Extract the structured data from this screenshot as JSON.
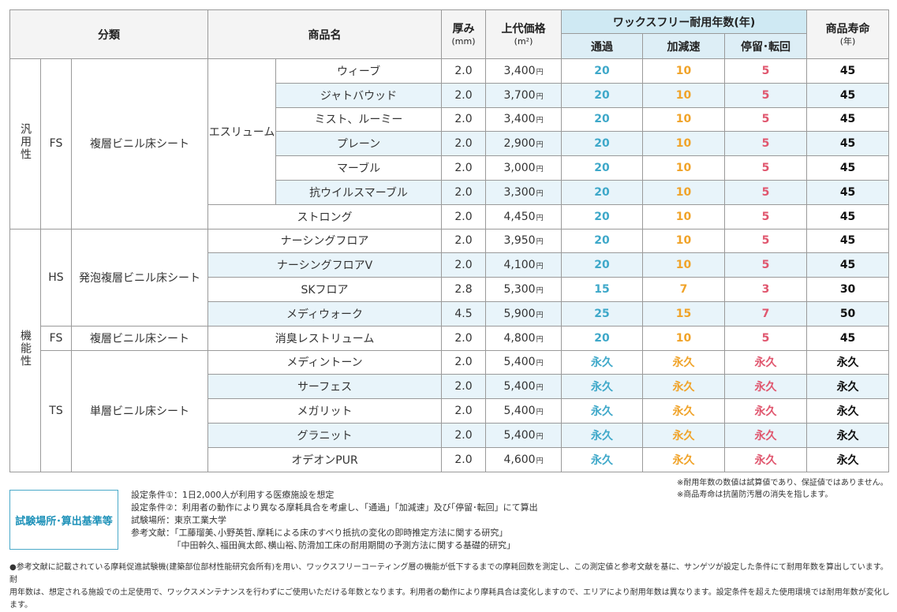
{
  "header": {
    "category": "分類",
    "product_name": "商品名",
    "thickness": "厚み",
    "thickness_unit": "(mm)",
    "price": "上代価格",
    "price_unit": "(m²)",
    "wax_free": "ワックスフリー耐用年数(年)",
    "wax_sub": [
      "通過",
      "加減速",
      "停留･転回"
    ],
    "life": "商品寿命",
    "life_unit": "(年)"
  },
  "groups": {
    "general": "汎用性",
    "functional": "機能性",
    "fs": "FS",
    "hs": "HS",
    "ts": "TS",
    "fs_type": "複層ビニル床シート",
    "hs_type": "発泡複層ビニル床シート",
    "fs2_type": "複層ビニル床シート",
    "ts_type": "単層ビニル床シート",
    "esurium": "エスリューム"
  },
  "rows": [
    {
      "name": "ウィーブ",
      "thick": "2.0",
      "price": "3,400",
      "pass": "20",
      "accel": "10",
      "stop": "5",
      "life": "45"
    },
    {
      "name": "ジャトバウッド",
      "thick": "2.0",
      "price": "3,700",
      "pass": "20",
      "accel": "10",
      "stop": "5",
      "life": "45"
    },
    {
      "name": "ミスト、ルーミー",
      "thick": "2.0",
      "price": "3,400",
      "pass": "20",
      "accel": "10",
      "stop": "5",
      "life": "45"
    },
    {
      "name": "プレーン",
      "thick": "2.0",
      "price": "2,900",
      "pass": "20",
      "accel": "10",
      "stop": "5",
      "life": "45"
    },
    {
      "name": "マーブル",
      "thick": "2.0",
      "price": "3,000",
      "pass": "20",
      "accel": "10",
      "stop": "5",
      "life": "45"
    },
    {
      "name": "抗ウイルスマーブル",
      "thick": "2.0",
      "price": "3,300",
      "pass": "20",
      "accel": "10",
      "stop": "5",
      "life": "45"
    },
    {
      "name": "ストロング",
      "thick": "2.0",
      "price": "4,450",
      "pass": "20",
      "accel": "10",
      "stop": "5",
      "life": "45"
    },
    {
      "name": "ナーシングフロア",
      "thick": "2.0",
      "price": "3,950",
      "pass": "20",
      "accel": "10",
      "stop": "5",
      "life": "45"
    },
    {
      "name": "ナーシングフロアV",
      "thick": "2.0",
      "price": "4,100",
      "pass": "20",
      "accel": "10",
      "stop": "5",
      "life": "45"
    },
    {
      "name": "SKフロア",
      "thick": "2.8",
      "price": "5,300",
      "pass": "15",
      "accel": "7",
      "stop": "3",
      "life": "30"
    },
    {
      "name": "メディウォーク",
      "thick": "4.5",
      "price": "5,900",
      "pass": "25",
      "accel": "15",
      "stop": "7",
      "life": "50"
    },
    {
      "name": "消臭レストリューム",
      "thick": "2.0",
      "price": "4,800",
      "pass": "20",
      "accel": "10",
      "stop": "5",
      "life": "45"
    },
    {
      "name": "メディントーン",
      "thick": "2.0",
      "price": "5,400",
      "pass": "永久",
      "accel": "永久",
      "stop": "永久",
      "life": "永久"
    },
    {
      "name": "サーフェス",
      "thick": "2.0",
      "price": "5,400",
      "pass": "永久",
      "accel": "永久",
      "stop": "永久",
      "life": "永久"
    },
    {
      "name": "メガリット",
      "thick": "2.0",
      "price": "5,400",
      "pass": "永久",
      "accel": "永久",
      "stop": "永久",
      "life": "永久"
    },
    {
      "name": "グラニット",
      "thick": "2.0",
      "price": "5,400",
      "pass": "永久",
      "accel": "永久",
      "stop": "永久",
      "life": "永久"
    },
    {
      "name": "オデオンPUR",
      "thick": "2.0",
      "price": "4,600",
      "pass": "永久",
      "accel": "永久",
      "stop": "永久",
      "life": "永久"
    }
  ],
  "yen": "円",
  "notes": {
    "box": "試験場所･算出基準等",
    "cond1": "設定条件①：1日2,000人が利用する医療施設を想定",
    "cond2": "設定条件②：利用者の動作により異なる摩耗具合を考慮し､「通過」｢加減速」及び｢停留･転回」にて算出",
    "place": "試験場所：東京工業大学",
    "ref1": "参考文献：｢工藤瑠美､小野英哲､摩耗による床のすべり抵抗の変化の即時推定方法に関する研究」",
    "ref2": "｢中田幹久､福田眞太郎､横山裕､防滑加工床の耐用期間の予測方法に関する基礎的研究」",
    "right1": "※耐用年数の数値は試算値であり、保証値ではありません。",
    "right2": "※商品寿命は抗菌防汚層の消失を指します。",
    "footer1": "●参考文献に記載されている摩耗促進試験機(建築部位部材性能研究会所有)を用い、ワックスフリーコーティング層の機能が低下するまでの摩耗回数を測定し、この測定値と参考文献を基に、サンゲツが設定した条件にて耐用年数を算出しています。耐",
    "footer2": "用年数は、想定される施設での土足使用で、ワックスメンテナンスを行わずにご使用いただける年数となります。利用者の動作により摩耗具合は変化しますので、エリアにより耐用年数は異なります。設定条件を超えた使用環境では耐用年数が変化します。"
  },
  "colors": {
    "pass": "#3ea8c9",
    "accel": "#f0a329",
    "stop": "#e0566e",
    "shade": "#e8f4fa",
    "wax_header": "#cfe9f3"
  }
}
